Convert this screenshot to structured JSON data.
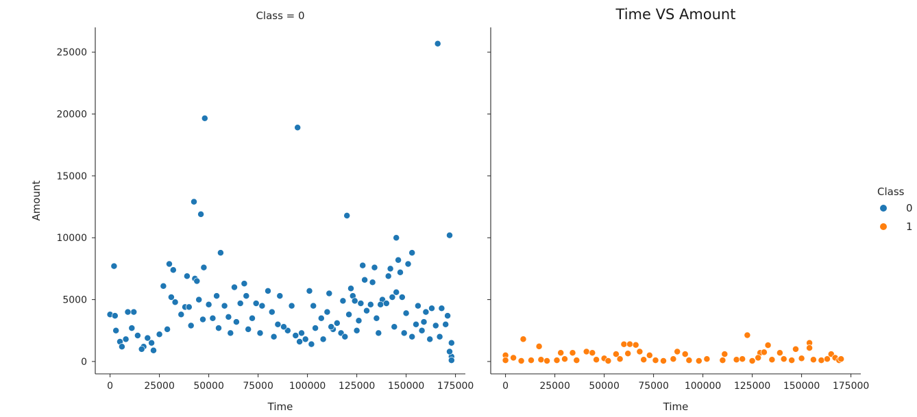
{
  "figure": {
    "main_title": "Time VS Amount",
    "legend": {
      "title": "Class",
      "entries": [
        {
          "label": "0",
          "color": "#1f77b4"
        },
        {
          "label": "1",
          "color": "#ff7f0e"
        }
      ]
    }
  },
  "chart_data": [
    {
      "type": "scatter",
      "title": "Class = 0",
      "xlabel": "Time",
      "ylabel": "Amount",
      "xlim": [
        -7500,
        180000
      ],
      "ylim": [
        -1000,
        27000
      ],
      "xticks": [
        0,
        25000,
        50000,
        75000,
        100000,
        125000,
        150000,
        175000
      ],
      "yticks": [
        0,
        5000,
        10000,
        15000,
        20000,
        25000
      ],
      "color": "#1f77b4",
      "series": [
        {
          "values": [
            [
              166000,
              25691
            ],
            [
              48000,
              19656
            ],
            [
              95000,
              18910
            ],
            [
              42500,
              12910
            ],
            [
              46000,
              11898
            ],
            [
              120000,
              11790
            ],
            [
              172000,
              10200
            ],
            [
              145000,
              10000
            ],
            [
              153000,
              8787
            ],
            [
              56000,
              8790
            ],
            [
              2000,
              7712
            ],
            [
              30000,
              7879
            ],
            [
              128000,
              7766
            ],
            [
              151000,
              7879
            ],
            [
              142000,
              7500
            ],
            [
              134000,
              7600
            ],
            [
              32000,
              7400
            ],
            [
              47500,
              7600
            ],
            [
              39000,
              6900
            ],
            [
              43000,
              6700
            ],
            [
              146000,
              8200
            ],
            [
              147000,
              7200
            ],
            [
              129000,
              6600
            ],
            [
              44000,
              6500
            ],
            [
              68000,
              6300
            ],
            [
              141000,
              6900
            ],
            [
              27000,
              6100
            ],
            [
              63000,
              6000
            ],
            [
              122000,
              5900
            ],
            [
              133000,
              6400
            ],
            [
              101000,
              5700
            ],
            [
              80000,
              5700
            ],
            [
              86000,
              5300
            ],
            [
              69000,
              5300
            ],
            [
              54000,
              5300
            ],
            [
              31000,
              5200
            ],
            [
              145000,
              5600
            ],
            [
              148000,
              5200
            ],
            [
              143000,
              5200
            ],
            [
              123000,
              5300
            ],
            [
              138000,
              5000
            ],
            [
              111000,
              5500
            ],
            [
              0,
              3800
            ],
            [
              2500,
              3700
            ],
            [
              12000,
              4000
            ],
            [
              9000,
              4000
            ],
            [
              33000,
              4800
            ],
            [
              38000,
              4400
            ],
            [
              40000,
              4400
            ],
            [
              45000,
              5000
            ],
            [
              50000,
              4600
            ],
            [
              58000,
              4500
            ],
            [
              66000,
              4700
            ],
            [
              74000,
              4700
            ],
            [
              77000,
              4500
            ],
            [
              82000,
              4000
            ],
            [
              92000,
              4500
            ],
            [
              103000,
              4500
            ],
            [
              118000,
              4900
            ],
            [
              124000,
              4900
            ],
            [
              127000,
              4700
            ],
            [
              132000,
              4600
            ],
            [
              137000,
              4600
            ],
            [
              140000,
              4700
            ],
            [
              156000,
              4500
            ],
            [
              160000,
              4000
            ],
            [
              163000,
              4300
            ],
            [
              168000,
              4300
            ],
            [
              171000,
              3700
            ],
            [
              11000,
              2700
            ],
            [
              14000,
              2100
            ],
            [
              19000,
              1900
            ],
            [
              3000,
              2500
            ],
            [
              8000,
              1800
            ],
            [
              25000,
              2200
            ],
            [
              107000,
              3500
            ],
            [
              110000,
              4000
            ],
            [
              113000,
              2600
            ],
            [
              115000,
              3100
            ],
            [
              150000,
              3900
            ],
            [
              159000,
              3200
            ],
            [
              165000,
              2900
            ],
            [
              170000,
              3000
            ],
            [
              173000,
              1500
            ],
            [
              173000,
              400
            ],
            [
              173000,
              100
            ],
            [
              172000,
              800
            ],
            [
              90000,
              2500
            ],
            [
              97000,
              2300
            ],
            [
              99000,
              1800
            ],
            [
              21000,
              1500
            ],
            [
              17000,
              1200
            ],
            [
              5000,
              1600
            ],
            [
              60000,
              3600
            ],
            [
              72000,
              3500
            ],
            [
              88000,
              2800
            ],
            [
              104000,
              2700
            ],
            [
              117000,
              2300
            ],
            [
              126000,
              3300
            ],
            [
              135000,
              3500
            ],
            [
              155000,
              3000
            ],
            [
              36000,
              3800
            ],
            [
              47000,
              3400
            ],
            [
              52000,
              3500
            ],
            [
              64000,
              3200
            ],
            [
              85000,
              3000
            ],
            [
              94000,
              2100
            ],
            [
              112000,
              2800
            ],
            [
              121000,
              3800
            ],
            [
              130000,
              4100
            ],
            [
              158000,
              2500
            ],
            [
              6000,
              1200
            ],
            [
              16000,
              1000
            ],
            [
              22000,
              900
            ],
            [
              29000,
              2600
            ],
            [
              41000,
              2900
            ],
            [
              55000,
              2700
            ],
            [
              61000,
              2300
            ],
            [
              70000,
              2600
            ],
            [
              76000,
              2300
            ],
            [
              83000,
              2000
            ],
            [
              96000,
              1600
            ],
            [
              102000,
              1400
            ],
            [
              108000,
              1800
            ],
            [
              119000,
              2000
            ],
            [
              125000,
              2500
            ],
            [
              136000,
              2300
            ],
            [
              144000,
              2800
            ],
            [
              149000,
              2300
            ],
            [
              153000,
              2000
            ],
            [
              162000,
              1800
            ],
            [
              167000,
              2000
            ]
          ]
        }
      ]
    },
    {
      "type": "scatter",
      "title": "",
      "xlabel": "Time",
      "ylabel": "",
      "xlim": [
        -7500,
        180000
      ],
      "ylim": [
        -1000,
        27000
      ],
      "xticks": [
        0,
        25000,
        50000,
        75000,
        100000,
        125000,
        150000,
        175000
      ],
      "yticks": [
        0,
        5000,
        10000,
        15000,
        20000,
        25000
      ],
      "color": "#ff7f0e",
      "series": [
        {
          "values": [
            [
              122500,
              2126
            ],
            [
              9000,
              1809
            ],
            [
              154000,
              1504
            ],
            [
              60000,
              1389
            ],
            [
              63000,
              1404
            ],
            [
              66000,
              1335
            ],
            [
              133000,
              1320
            ],
            [
              17000,
              1218
            ],
            [
              154000,
              1100
            ],
            [
              147000,
              1000
            ],
            [
              87000,
              800
            ],
            [
              41000,
              800
            ],
            [
              44000,
              700
            ],
            [
              34000,
              700
            ],
            [
              28000,
              700
            ],
            [
              68000,
              800
            ],
            [
              129000,
              700
            ],
            [
              111000,
              600
            ],
            [
              165000,
              600
            ],
            [
              131000,
              750
            ],
            [
              139000,
              700
            ],
            [
              56000,
              600
            ],
            [
              62000,
              650
            ],
            [
              73000,
              500
            ],
            [
              91000,
              600
            ],
            [
              0,
              500
            ],
            [
              4000,
              300
            ],
            [
              0,
              100
            ],
            [
              8000,
              50
            ],
            [
              13000,
              100
            ],
            [
              18000,
              150
            ],
            [
              21000,
              50
            ],
            [
              26000,
              100
            ],
            [
              30000,
              200
            ],
            [
              36000,
              100
            ],
            [
              46000,
              150
            ],
            [
              50000,
              250
            ],
            [
              52000,
              50
            ],
            [
              58000,
              200
            ],
            [
              70000,
              150
            ],
            [
              76000,
              100
            ],
            [
              80000,
              50
            ],
            [
              85000,
              200
            ],
            [
              93000,
              100
            ],
            [
              98000,
              50
            ],
            [
              102000,
              200
            ],
            [
              110000,
              100
            ],
            [
              117000,
              150
            ],
            [
              120000,
              200
            ],
            [
              125000,
              50
            ],
            [
              128000,
              300
            ],
            [
              135000,
              150
            ],
            [
              141000,
              200
            ],
            [
              145000,
              100
            ],
            [
              150000,
              250
            ],
            [
              156000,
              150
            ],
            [
              160000,
              100
            ],
            [
              163000,
              200
            ],
            [
              167000,
              300
            ],
            [
              169000,
              100
            ],
            [
              170000,
              200
            ]
          ]
        }
      ]
    }
  ]
}
